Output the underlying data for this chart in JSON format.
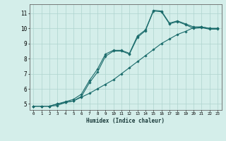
{
  "xlabel": "Humidex (Indice chaleur)",
  "ylabel": "",
  "xlim": [
    -0.5,
    23.5
  ],
  "ylim": [
    4.6,
    11.6
  ],
  "xticks": [
    0,
    1,
    2,
    3,
    4,
    5,
    6,
    7,
    8,
    9,
    10,
    11,
    12,
    13,
    14,
    15,
    16,
    17,
    18,
    19,
    20,
    21,
    22,
    23
  ],
  "yticks": [
    5,
    6,
    7,
    8,
    9,
    10,
    11
  ],
  "background_color": "#d4eeea",
  "grid_color": "#aed4ce",
  "line_color": "#1a6b6b",
  "line1_x": [
    0,
    1,
    2,
    3,
    4,
    5,
    6,
    7,
    8,
    9,
    10,
    11,
    12,
    13,
    14,
    15,
    16,
    17,
    18,
    19,
    20,
    21,
    22,
    23
  ],
  "line1_y": [
    4.85,
    4.85,
    4.85,
    5.0,
    5.1,
    5.2,
    5.45,
    5.7,
    6.0,
    6.3,
    6.6,
    7.0,
    7.4,
    7.8,
    8.2,
    8.6,
    9.0,
    9.3,
    9.6,
    9.8,
    10.05,
    10.1,
    10.0,
    10.0
  ],
  "line2_x": [
    0,
    1,
    2,
    3,
    4,
    5,
    6,
    7,
    8,
    9,
    10,
    11,
    12,
    13,
    14,
    15,
    16,
    17,
    18,
    19,
    20,
    21,
    22,
    23
  ],
  "line2_y": [
    4.85,
    4.85,
    4.85,
    5.0,
    5.15,
    5.3,
    5.65,
    6.55,
    7.3,
    8.3,
    8.55,
    8.55,
    8.35,
    9.5,
    9.9,
    11.2,
    11.15,
    10.35,
    10.5,
    10.3,
    10.1,
    10.1,
    10.0,
    10.0
  ],
  "line3_x": [
    0,
    1,
    2,
    3,
    4,
    5,
    6,
    7,
    8,
    9,
    10,
    11,
    12,
    13,
    14,
    15,
    16,
    17,
    18,
    19,
    20,
    21,
    22,
    23
  ],
  "line3_y": [
    4.85,
    4.85,
    4.85,
    4.9,
    5.1,
    5.2,
    5.5,
    6.4,
    7.1,
    8.15,
    8.5,
    8.5,
    8.3,
    9.4,
    9.85,
    11.15,
    11.1,
    10.3,
    10.45,
    10.25,
    10.0,
    10.05,
    9.95,
    9.95
  ]
}
